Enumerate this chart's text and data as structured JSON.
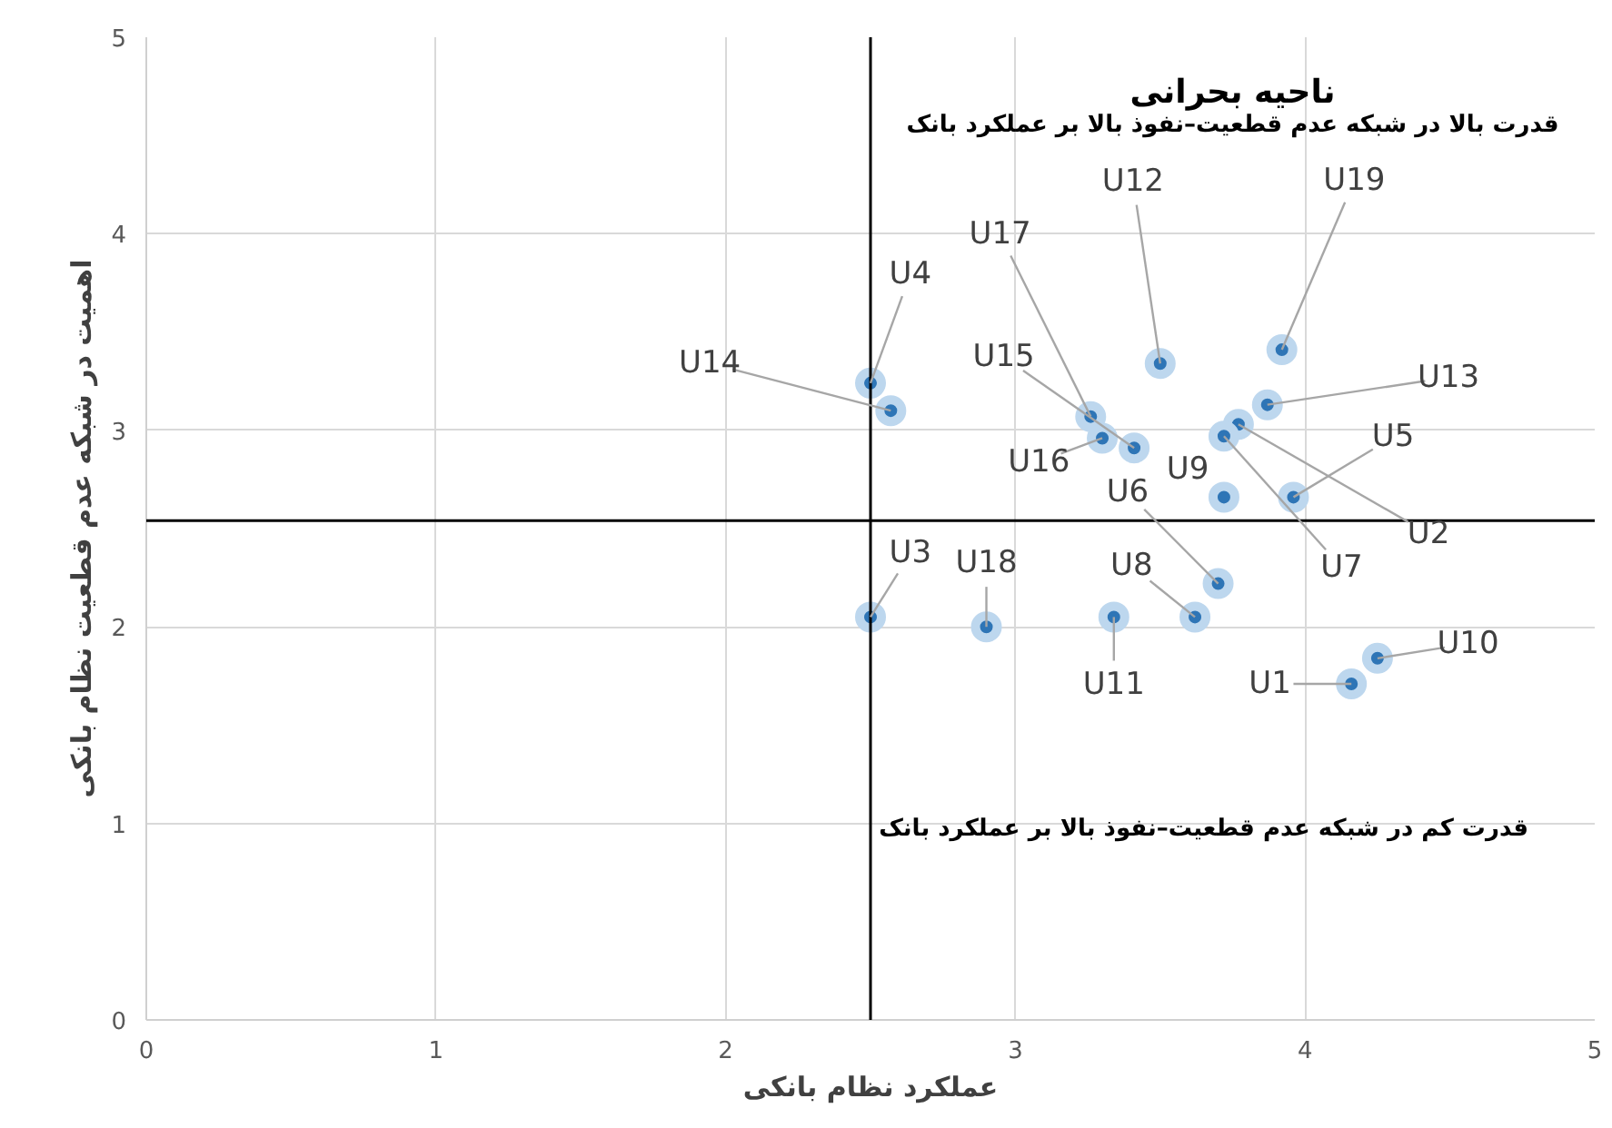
{
  "chart_data": {
    "type": "scatter",
    "xlabel": "عملکرد نظام بانکی",
    "ylabel": "اهمیت در شبکه عدم قطعیت نظام بانکی",
    "x": [
      4.16,
      3.77,
      2.5,
      2.5,
      3.96,
      3.7,
      3.72,
      3.62,
      3.72,
      4.25,
      3.34,
      3.5,
      3.87,
      2.57,
      3.41,
      3.3,
      3.26,
      2.9,
      3.92
    ],
    "series": [
      {
        "color": "#2e75b6",
        "values": [
          1.71,
          3.03,
          2.05,
          3.24,
          2.66,
          2.22,
          2.97,
          2.05,
          2.66,
          1.84,
          2.05,
          3.34,
          3.13,
          3.1,
          2.91,
          2.96,
          3.07,
          2.0,
          3.41
        ]
      }
    ],
    "xlim": [
      0,
      5
    ],
    "ylim": [
      0,
      5
    ],
    "xticks": [
      0,
      1,
      2,
      3,
      4,
      5
    ],
    "yticks": [
      0,
      1,
      2,
      3,
      4,
      5
    ],
    "grid": true,
    "marker": "circle",
    "ref_lines": [
      {
        "axis": "x",
        "value": 2.5,
        "color": "#000000"
      },
      {
        "axis": "y",
        "value": 2.54,
        "color": "#000000"
      }
    ],
    "annotations": [
      {
        "text": "U1",
        "x": 4.16,
        "y": 1.71
      },
      {
        "text": "U2",
        "x": 3.77,
        "y": 3.03
      },
      {
        "text": "U3",
        "x": 2.5,
        "y": 2.05
      },
      {
        "text": "U4",
        "x": 2.5,
        "y": 3.24
      },
      {
        "text": "U5",
        "x": 3.96,
        "y": 2.66
      },
      {
        "text": "U6",
        "x": 3.7,
        "y": 2.22
      },
      {
        "text": "U7",
        "x": 3.72,
        "y": 2.97
      },
      {
        "text": "U8",
        "x": 3.62,
        "y": 2.05
      },
      {
        "text": "U9",
        "x": 3.72,
        "y": 2.66
      },
      {
        "text": "U10",
        "x": 4.25,
        "y": 1.84
      },
      {
        "text": "U11",
        "x": 3.34,
        "y": 2.05
      },
      {
        "text": "U12",
        "x": 3.5,
        "y": 3.34
      },
      {
        "text": "U13",
        "x": 3.87,
        "y": 3.13
      },
      {
        "text": "U14",
        "x": 2.57,
        "y": 3.1
      },
      {
        "text": "U15",
        "x": 3.41,
        "y": 2.91
      },
      {
        "text": "U16",
        "x": 3.3,
        "y": 2.96
      },
      {
        "text": "U17",
        "x": 3.26,
        "y": 3.07
      },
      {
        "text": "U18",
        "x": 2.9,
        "y": 2.0
      },
      {
        "text": "U19",
        "x": 3.92,
        "y": 3.41
      },
      "ناحیه بحرانی",
      "قدرت بالا در شبکه عدم قطعیت–نفوذ بالا بر عملکرد بانک",
      "قدرت کم در شبکه عدم قطعیت–نفوذ بالا بر عملکرد بانک"
    ]
  }
}
